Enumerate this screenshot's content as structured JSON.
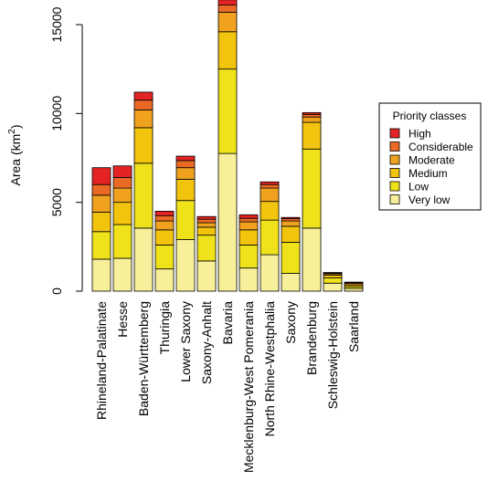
{
  "chart_data": {
    "type": "bar",
    "stacked": true,
    "categories": [
      "Rhineland-Palatinate",
      "Hesse",
      "Baden-Württemberg",
      "Thuringia",
      "Lower Saxony",
      "Saxony-Anhalt",
      "Bavaria",
      "Mecklenburg-West Pomerania",
      "North Rhine-Westphalia",
      "Saxony",
      "Brandenburg",
      "Schleswig-Holstein",
      "Saarland"
    ],
    "series": [
      {
        "name": "Very low",
        "color": "#f7ef9a",
        "values": [
          1800,
          1850,
          3550,
          1250,
          2900,
          1700,
          7750,
          1300,
          2050,
          1000,
          3550,
          450,
          150
        ]
      },
      {
        "name": "Low",
        "color": "#efe21a",
        "values": [
          1550,
          1900,
          3650,
          1350,
          2200,
          1450,
          4750,
          1300,
          1950,
          1750,
          4450,
          300,
          100
        ]
      },
      {
        "name": "Medium",
        "color": "#f2c40e",
        "values": [
          1100,
          1250,
          2000,
          850,
          1200,
          450,
          2100,
          850,
          1050,
          900,
          1500,
          150,
          100
        ]
      },
      {
        "name": "Moderate",
        "color": "#f0a21f",
        "values": [
          950,
          800,
          1000,
          500,
          650,
          250,
          1100,
          450,
          750,
          300,
          300,
          80,
          80
        ]
      },
      {
        "name": "Considerable",
        "color": "#ea6a25",
        "values": [
          600,
          600,
          550,
          300,
          400,
          200,
          400,
          200,
          200,
          130,
          150,
          40,
          50
        ]
      },
      {
        "name": "High",
        "color": "#e42424",
        "values": [
          950,
          650,
          450,
          250,
          250,
          150,
          300,
          200,
          150,
          70,
          100,
          30,
          30
        ]
      }
    ],
    "ylabel": "Area (km²)",
    "ylabel_parts": {
      "base": "Area (km",
      "sup": "2",
      "close": ")"
    },
    "yticks": [
      0,
      5000,
      10000,
      15000
    ],
    "ylim": [
      0,
      16200
    ],
    "legend": {
      "title": "Priority classes",
      "placement": "right",
      "entries": [
        "High",
        "Considerable",
        "Moderate",
        "Medium",
        "Low",
        "Very low"
      ]
    },
    "grid": false
  }
}
